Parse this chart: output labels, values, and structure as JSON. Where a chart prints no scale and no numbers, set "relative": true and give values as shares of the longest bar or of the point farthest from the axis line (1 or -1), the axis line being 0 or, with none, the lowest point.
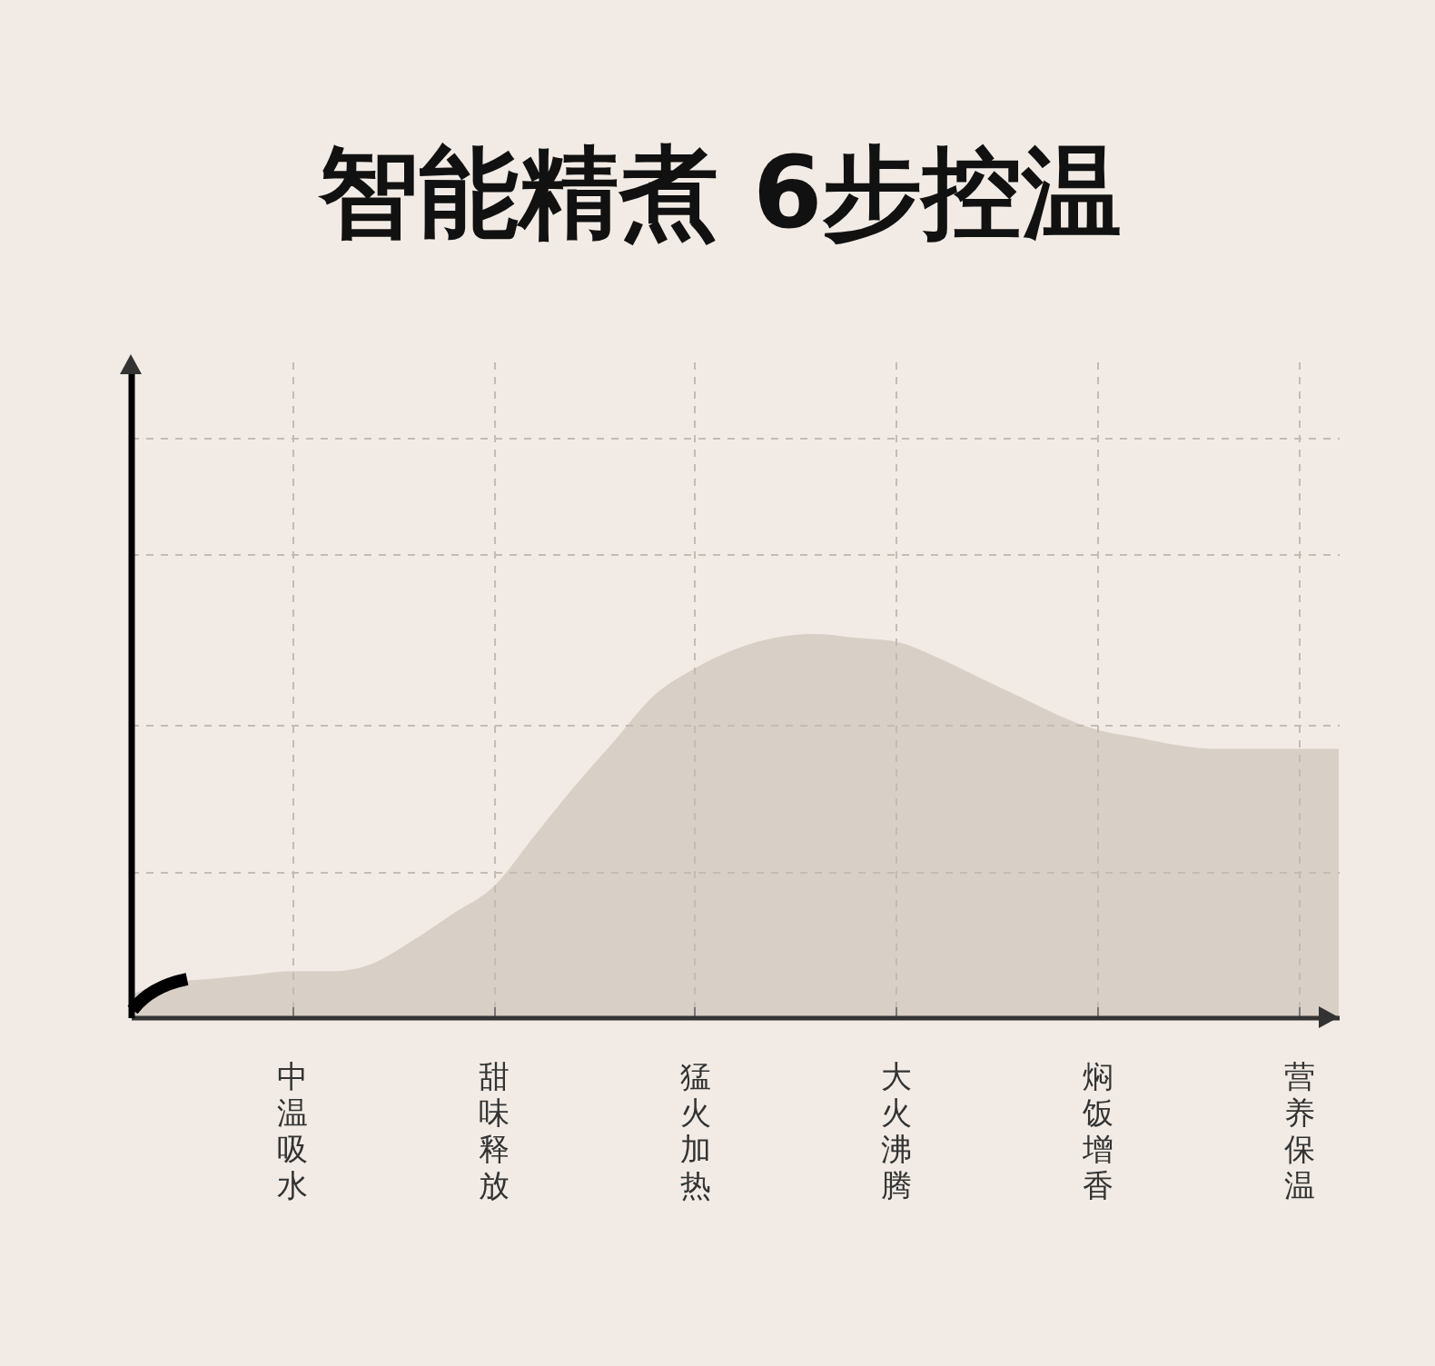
{
  "chart_data": {
    "type": "area",
    "title": "智能精煮 6步控温",
    "categories": [
      null,
      null,
      null,
      null,
      "中温吸水",
      null,
      null,
      null,
      null,
      "甜味释放",
      null,
      null,
      null,
      null,
      "猛火加热",
      null,
      null,
      null,
      null,
      "大火沸腾",
      null,
      null,
      null,
      null,
      "焖饭增香",
      null,
      null,
      null,
      null,
      "营养保温",
      null
    ],
    "values": [
      0.06,
      0.09,
      0.1,
      0.11,
      0.12,
      0.12,
      0.14,
      0.2,
      0.27,
      0.34,
      0.47,
      0.6,
      0.72,
      0.84,
      0.91,
      0.96,
      0.99,
      1,
      0.99,
      0.98,
      0.94,
      0.89,
      0.84,
      0.79,
      0.75,
      0.73,
      0.71,
      0.7,
      0.7,
      0.7,
      0.7
    ],
    "color": "#d8cfc6",
    "relative": true,
    "grid": true,
    "tick_labels": "x"
  }
}
